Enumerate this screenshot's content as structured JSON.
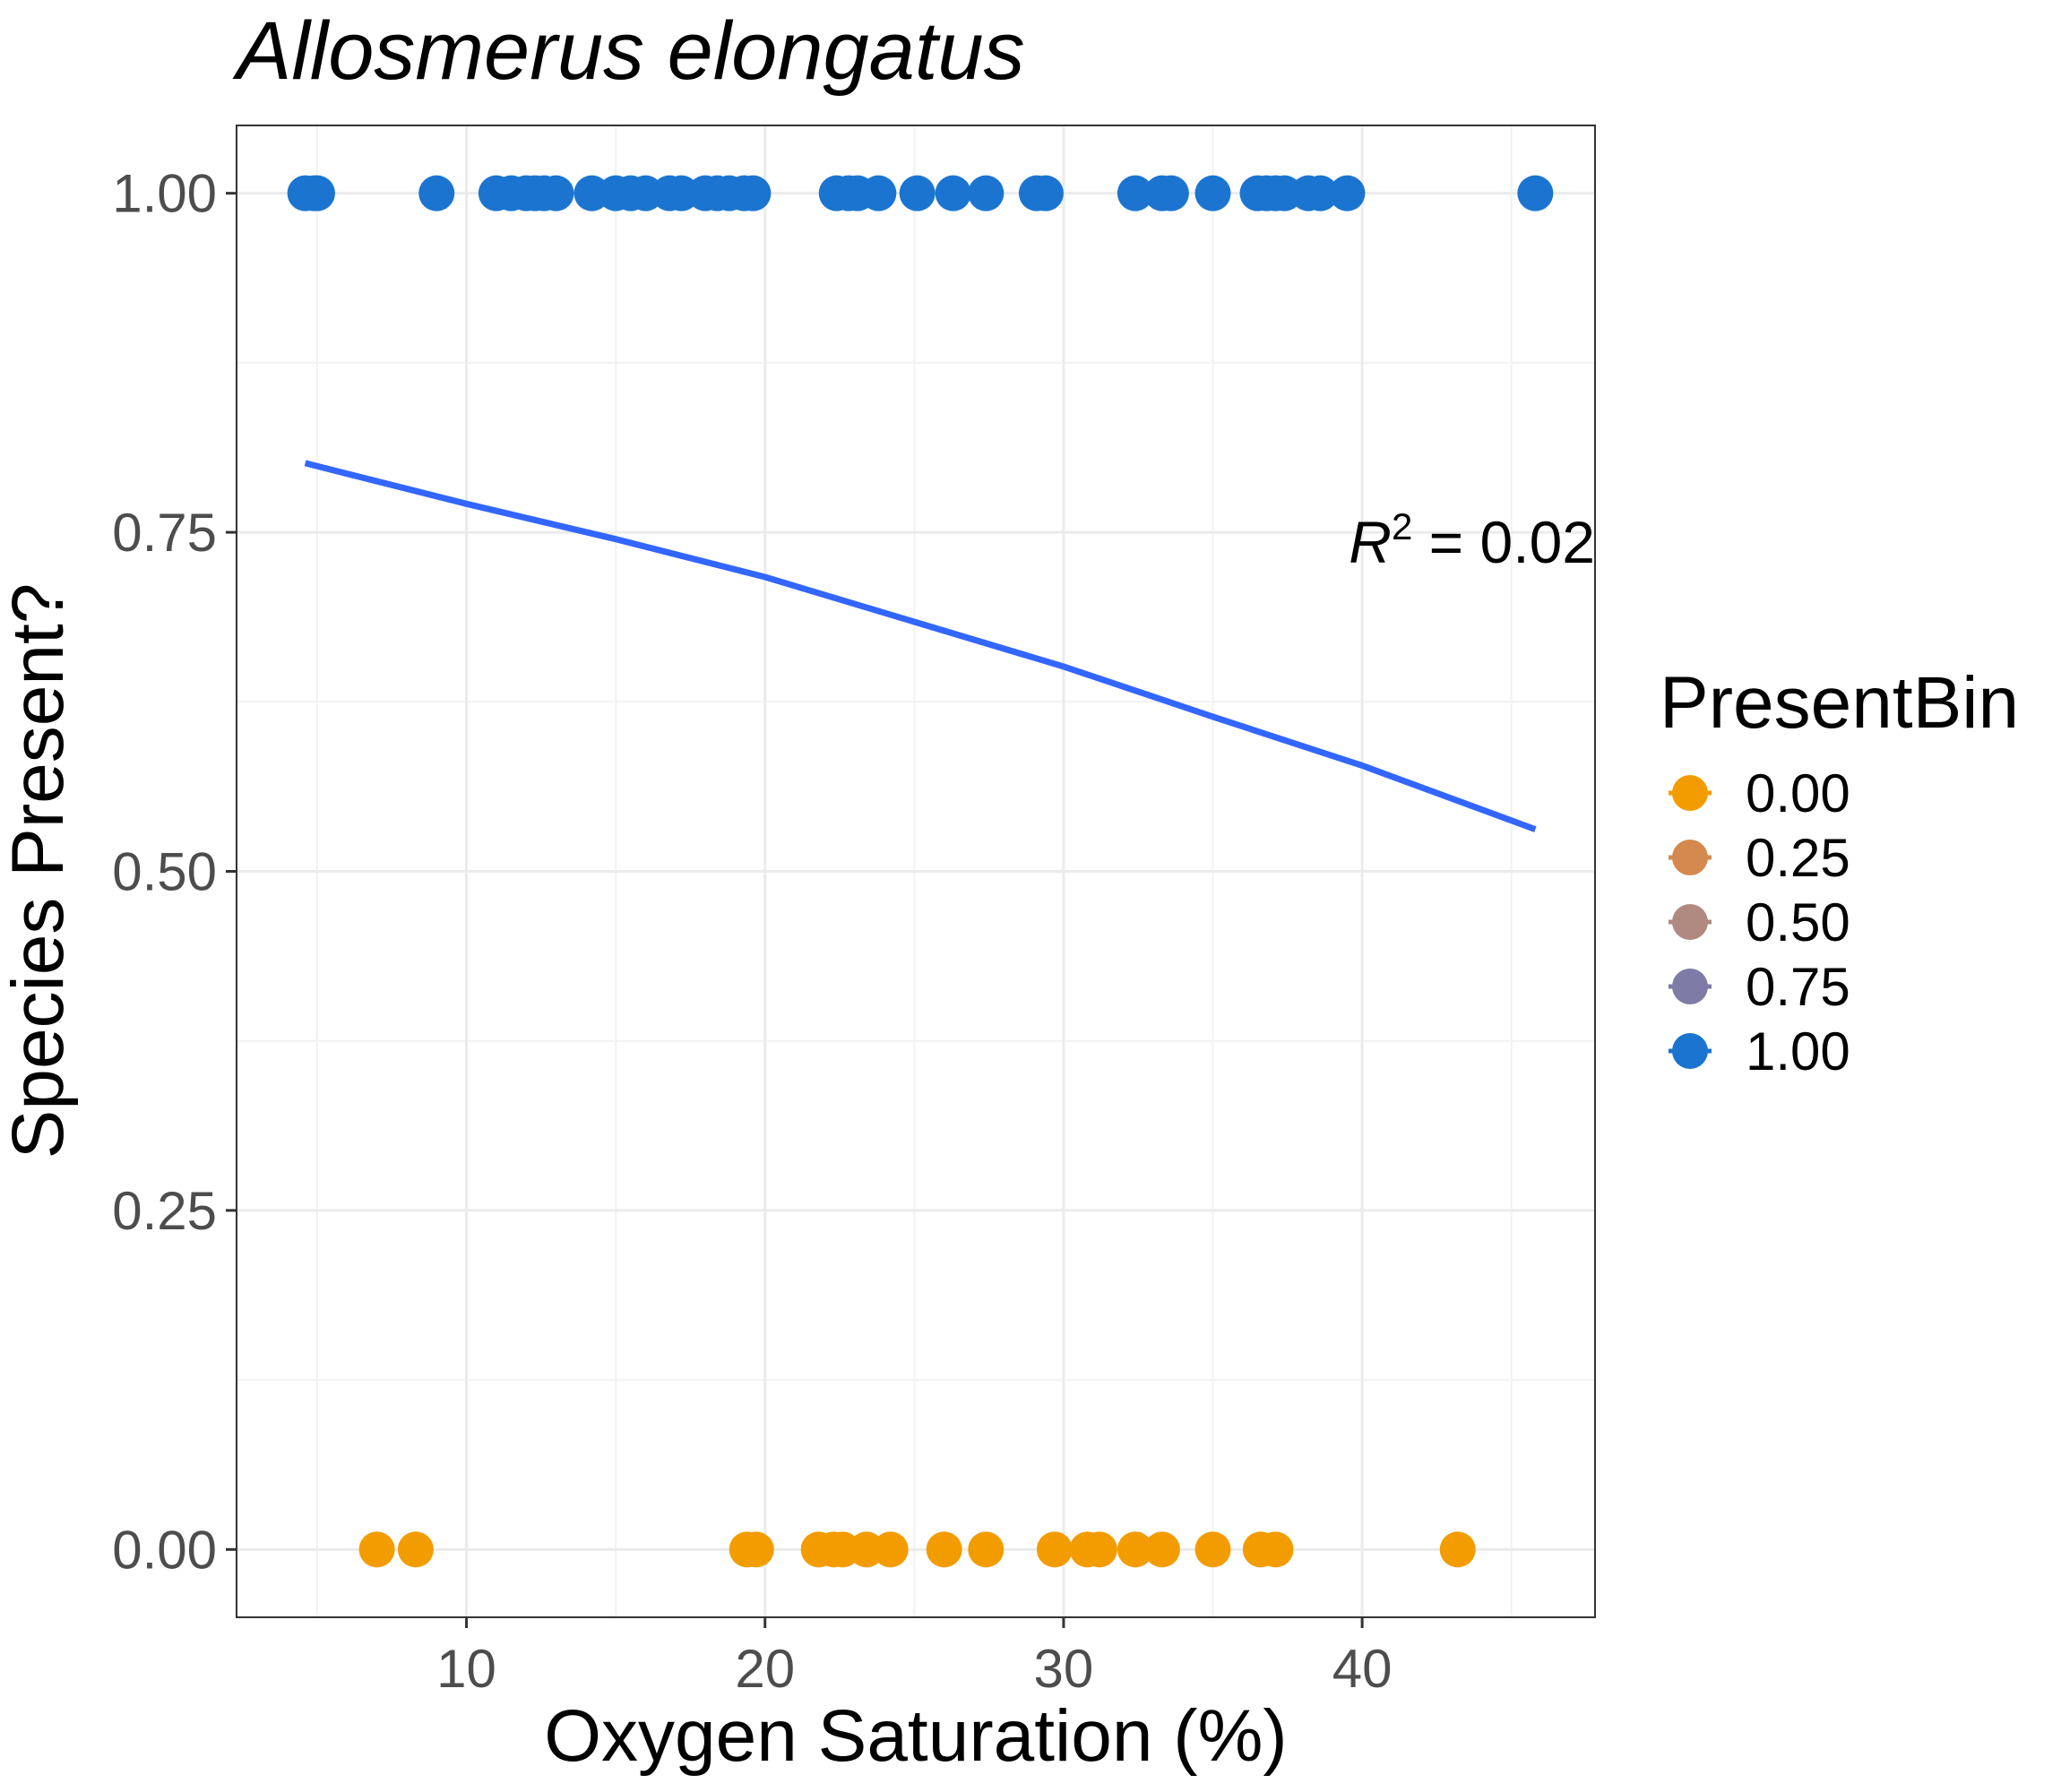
{
  "chart_data": {
    "type": "scatter",
    "title": "Allosmerus elongatus",
    "xlabel": "Oxygen Saturation (%)",
    "ylabel": "Species Present?",
    "xlim": [
      2.3,
      47.8
    ],
    "ylim": [
      -0.05,
      1.05
    ],
    "x_ticks": [
      10,
      20,
      30,
      40
    ],
    "x_tick_labels": [
      "10",
      "20",
      "30",
      "40"
    ],
    "y_ticks": [
      0,
      0.25,
      0.5,
      0.75,
      1.0
    ],
    "y_tick_labels": [
      "0.00",
      "0.25",
      "0.50",
      "0.75",
      "1.00"
    ],
    "grid": true,
    "legend": {
      "title": "PresentBin",
      "position": "right",
      "entries": [
        {
          "label": "0.00",
          "color": "#F39C00"
        },
        {
          "label": "0.25",
          "color": "#D4894F"
        },
        {
          "label": "0.50",
          "color": "#B08A80"
        },
        {
          "label": "0.75",
          "color": "#7E7BA6"
        },
        {
          "label": "1.00",
          "color": "#1B75D0"
        }
      ]
    },
    "series": [
      {
        "present_bin": 1.0,
        "color": "#1B75D0",
        "x": [
          4.6,
          4.9,
          5.0,
          9.0,
          11.0,
          11.5,
          12.0,
          12.3,
          12.6,
          13.0,
          14.2,
          15.0,
          15.5,
          16.0,
          16.8,
          17.2,
          18.0,
          18.4,
          18.8,
          19.3,
          19.6,
          22.4,
          22.8,
          23.1,
          23.8,
          25.1,
          26.3,
          27.4,
          29.1,
          29.4,
          32.4,
          33.3,
          33.6,
          35.0,
          36.5,
          36.8,
          37.1,
          37.4,
          38.2,
          38.6,
          39.5,
          45.8
        ],
        "y": [
          1,
          1,
          1,
          1,
          1,
          1,
          1,
          1,
          1,
          1,
          1,
          1,
          1,
          1,
          1,
          1,
          1,
          1,
          1,
          1,
          1,
          1,
          1,
          1,
          1,
          1,
          1,
          1,
          1,
          1,
          1,
          1,
          1,
          1,
          1,
          1,
          1,
          1,
          1,
          1,
          1,
          1
        ]
      },
      {
        "present_bin": 0.0,
        "color": "#F39C00",
        "x": [
          7.0,
          8.3,
          19.4,
          19.7,
          21.8,
          22.3,
          22.6,
          23.4,
          24.2,
          26.0,
          27.4,
          29.7,
          30.8,
          31.2,
          32.4,
          33.3,
          35.0,
          36.6,
          37.1,
          43.2
        ],
        "y": [
          0,
          0,
          0,
          0,
          0,
          0,
          0,
          0,
          0,
          0,
          0,
          0,
          0,
          0,
          0,
          0,
          0,
          0,
          0,
          0
        ]
      }
    ],
    "fit_line": {
      "color": "#3366FF",
      "x": [
        4.6,
        10,
        15,
        20,
        25,
        30,
        35,
        40,
        45.8
      ],
      "y": [
        0.801,
        0.771,
        0.745,
        0.717,
        0.684,
        0.651,
        0.614,
        0.578,
        0.531
      ]
    },
    "annotation": {
      "text_main": "R",
      "text_sup": "2",
      "text_rest": " = 0.02",
      "x": 42.0,
      "y": 0.74
    }
  }
}
